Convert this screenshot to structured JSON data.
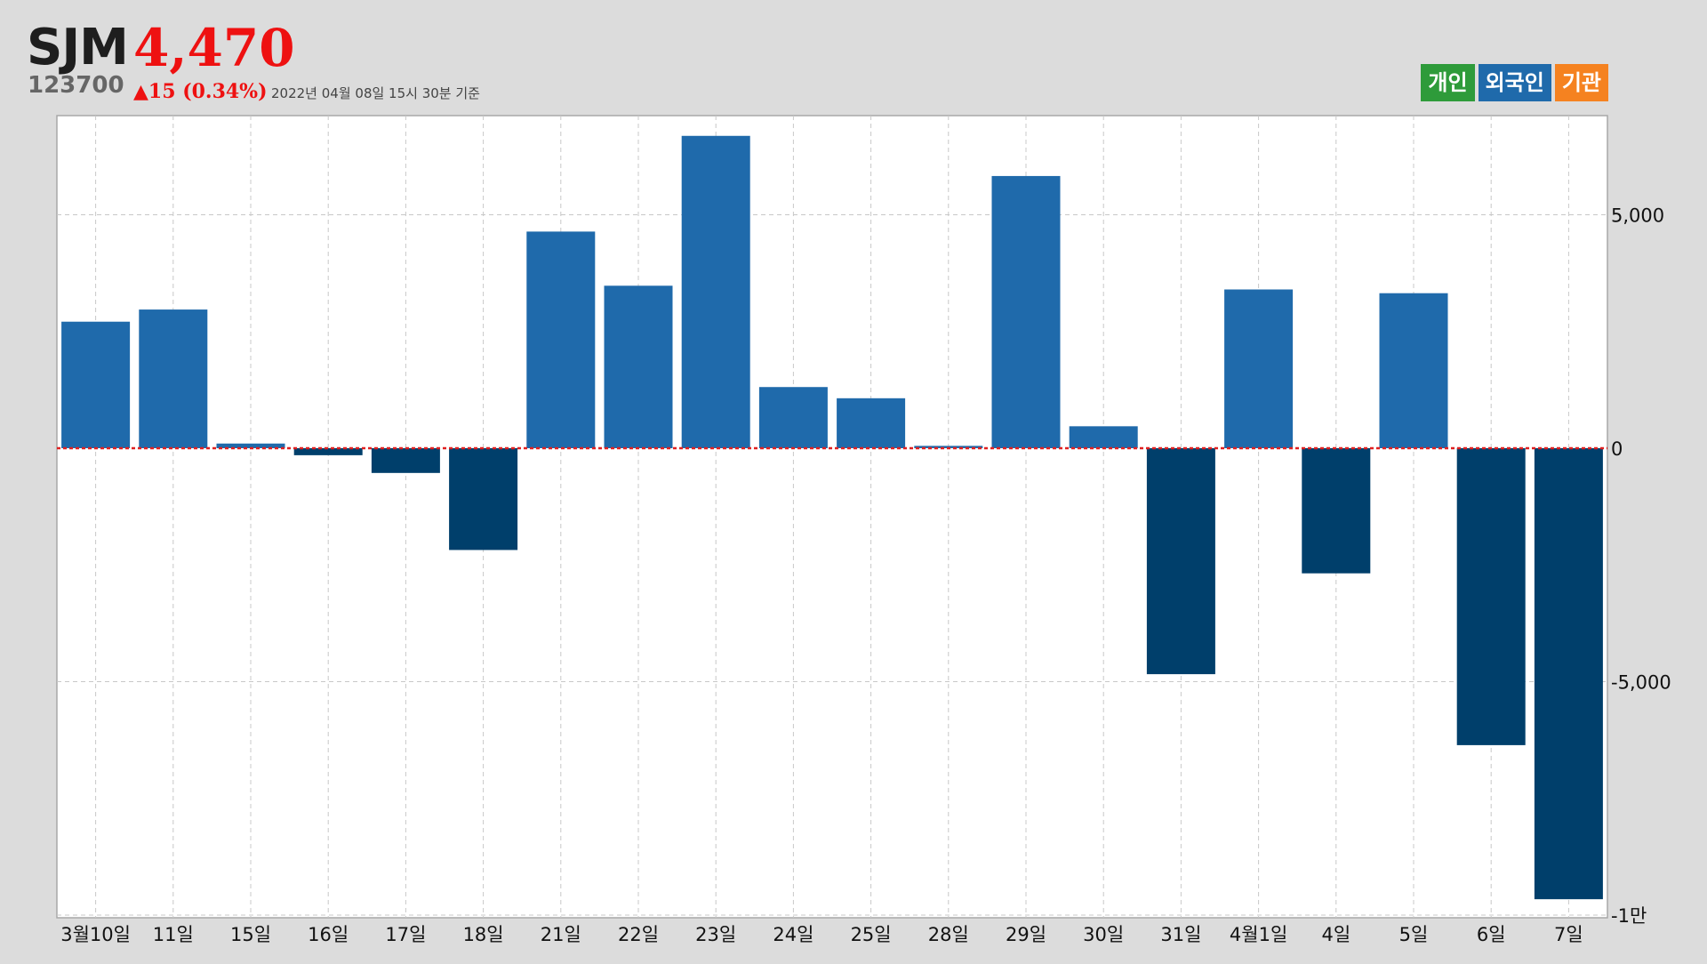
{
  "header": {
    "name": "SJM",
    "price": "4,470",
    "code": "123700",
    "change": "▲15 (0.34%)",
    "timestamp": "2022년 04월 08일 15시 30분 기준"
  },
  "legend": {
    "items": [
      {
        "label": "개인",
        "color": "#2e9b3a"
      },
      {
        "label": "외국인",
        "color": "#1f6aab"
      },
      {
        "label": "기관",
        "color": "#f58220"
      }
    ]
  },
  "colors": {
    "positive_bar": "#1f6aab",
    "negative_bar": "#003f6b",
    "zero_line": "#e02020",
    "grid": "#c8c8c8"
  },
  "chart_data": {
    "type": "bar",
    "series_name": "외국인",
    "categories": [
      "3월10일",
      "11일",
      "15일",
      "16일",
      "17일",
      "18일",
      "21일",
      "22일",
      "23일",
      "24일",
      "25일",
      "28일",
      "29일",
      "30일",
      "31일",
      "4월1일",
      "4일",
      "5일",
      "6일",
      "7일"
    ],
    "values": [
      2710,
      2970,
      100,
      -150,
      -530,
      -2180,
      4640,
      3480,
      6690,
      1310,
      1070,
      50,
      5830,
      470,
      -4840,
      3400,
      -2680,
      3320,
      -6360,
      -9660
    ],
    "y_ticks": [
      5000,
      0,
      -5000,
      -10000
    ],
    "y_tick_labels": [
      "5,000",
      "0",
      "-5,000",
      "-1만"
    ],
    "ylim": [
      -10000,
      7200
    ],
    "grid": true,
    "y_axis_position": "right"
  }
}
